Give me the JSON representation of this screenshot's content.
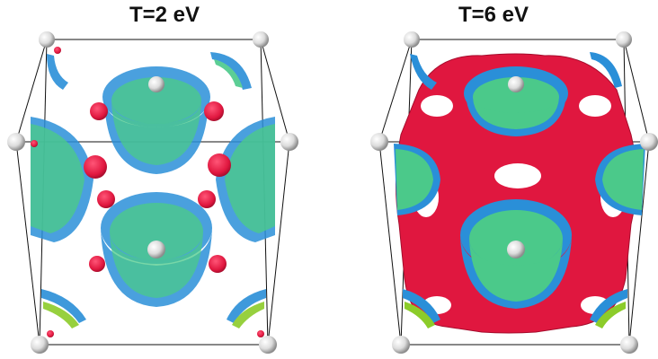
{
  "panels": [
    {
      "title": "T=2 eV"
    },
    {
      "title": "T=6 eV"
    }
  ],
  "colors": {
    "isosurface_outer": "#2a8fd8",
    "isosurface_inner": "#4bc98a",
    "isosurface_lime": "#8ccc2a",
    "isosurface_red": "#e0173f",
    "atom": "#e8e8e8",
    "cell_edge": "#111111"
  }
}
